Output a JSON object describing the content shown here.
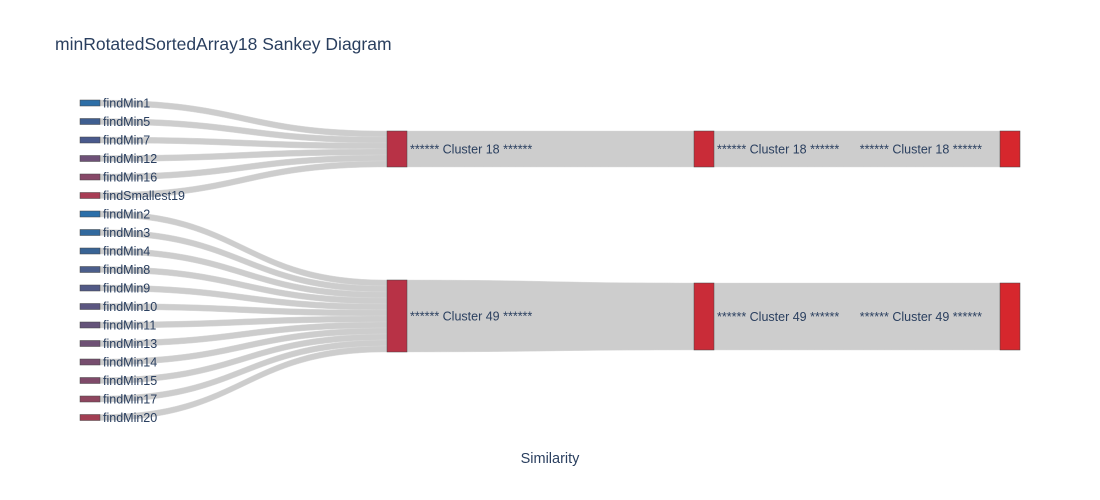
{
  "chart_data": {
    "type": "sankey",
    "title": "minRotatedSortedArray18 Sankey Diagram",
    "xlabel": "Similarity",
    "link_color": "#c8c8c8",
    "nodes": [
      {
        "id": "findMin1",
        "label": "findMin1",
        "stage": 0,
        "color": "#2e6fa7"
      },
      {
        "id": "findMin5",
        "label": "findMin5",
        "stage": 0,
        "color": "#3f5e90"
      },
      {
        "id": "findMin7",
        "label": "findMin7",
        "stage": 0,
        "color": "#4a5a8c"
      },
      {
        "id": "findMin12",
        "label": "findMin12",
        "stage": 0,
        "color": "#6e5177"
      },
      {
        "id": "findMin16",
        "label": "findMin16",
        "stage": 0,
        "color": "#874868"
      },
      {
        "id": "findSmallest19",
        "label": "findSmallest19",
        "stage": 0,
        "color": "#a83e55"
      },
      {
        "id": "findMin2",
        "label": "findMin2",
        "stage": 0,
        "color": "#2c6fa9"
      },
      {
        "id": "findMin3",
        "label": "findMin3",
        "stage": 0,
        "color": "#32699e"
      },
      {
        "id": "findMin4",
        "label": "findMin4",
        "stage": 0,
        "color": "#396495"
      },
      {
        "id": "findMin8",
        "label": "findMin8",
        "stage": 0,
        "color": "#4b5e8b"
      },
      {
        "id": "findMin9",
        "label": "findMin9",
        "stage": 0,
        "color": "#525a86"
      },
      {
        "id": "findMin10",
        "label": "findMin10",
        "stage": 0,
        "color": "#5b5680"
      },
      {
        "id": "findMin11",
        "label": "findMin11",
        "stage": 0,
        "color": "#65547a"
      },
      {
        "id": "findMin13",
        "label": "findMin13",
        "stage": 0,
        "color": "#6e5175"
      },
      {
        "id": "findMin14",
        "label": "findMin14",
        "stage": 0,
        "color": "#774e6f"
      },
      {
        "id": "findMin15",
        "label": "findMin15",
        "stage": 0,
        "color": "#7f4a69"
      },
      {
        "id": "findMin17",
        "label": "findMin17",
        "stage": 0,
        "color": "#8e465f"
      },
      {
        "id": "findMin20",
        "label": "findMin20",
        "stage": 0,
        "color": "#a23e53"
      },
      {
        "id": "c18_a",
        "label": "****** Cluster 18 ******",
        "stage": 1,
        "color": "#b83246"
      },
      {
        "id": "c49_a",
        "label": "****** Cluster 49 ******",
        "stage": 1,
        "color": "#b83246"
      },
      {
        "id": "c18_b",
        "label": "****** Cluster 18 ******",
        "stage": 2,
        "color": "#c92c38"
      },
      {
        "id": "c49_b",
        "label": "****** Cluster 49 ******",
        "stage": 2,
        "color": "#c92c38"
      },
      {
        "id": "c18_c",
        "label": "****** Cluster 18 ******",
        "stage": 3,
        "color": "#d6272d"
      },
      {
        "id": "c49_c",
        "label": "****** Cluster 49 ******",
        "stage": 3,
        "color": "#d6272d"
      }
    ],
    "links": [
      {
        "source": "findMin1",
        "target": "c18_a",
        "value": 1
      },
      {
        "source": "findMin5",
        "target": "c18_a",
        "value": 1
      },
      {
        "source": "findMin7",
        "target": "c18_a",
        "value": 1
      },
      {
        "source": "findMin12",
        "target": "c18_a",
        "value": 1
      },
      {
        "source": "findMin16",
        "target": "c18_a",
        "value": 1
      },
      {
        "source": "findSmallest19",
        "target": "c18_a",
        "value": 1
      },
      {
        "source": "findMin2",
        "target": "c49_a",
        "value": 1
      },
      {
        "source": "findMin3",
        "target": "c49_a",
        "value": 1
      },
      {
        "source": "findMin4",
        "target": "c49_a",
        "value": 1
      },
      {
        "source": "findMin8",
        "target": "c49_a",
        "value": 1
      },
      {
        "source": "findMin9",
        "target": "c49_a",
        "value": 1
      },
      {
        "source": "findMin10",
        "target": "c49_a",
        "value": 1
      },
      {
        "source": "findMin11",
        "target": "c49_a",
        "value": 1
      },
      {
        "source": "findMin13",
        "target": "c49_a",
        "value": 1
      },
      {
        "source": "findMin14",
        "target": "c49_a",
        "value": 1
      },
      {
        "source": "findMin15",
        "target": "c49_a",
        "value": 1
      },
      {
        "source": "findMin17",
        "target": "c49_a",
        "value": 1
      },
      {
        "source": "findMin20",
        "target": "c49_a",
        "value": 1
      },
      {
        "source": "c18_a",
        "target": "c18_b",
        "value": 6
      },
      {
        "source": "c49_a",
        "target": "c49_b",
        "value": 12
      },
      {
        "source": "c18_b",
        "target": "c18_c",
        "value": 6
      },
      {
        "source": "c49_b",
        "target": "c49_c",
        "value": 12
      }
    ]
  }
}
